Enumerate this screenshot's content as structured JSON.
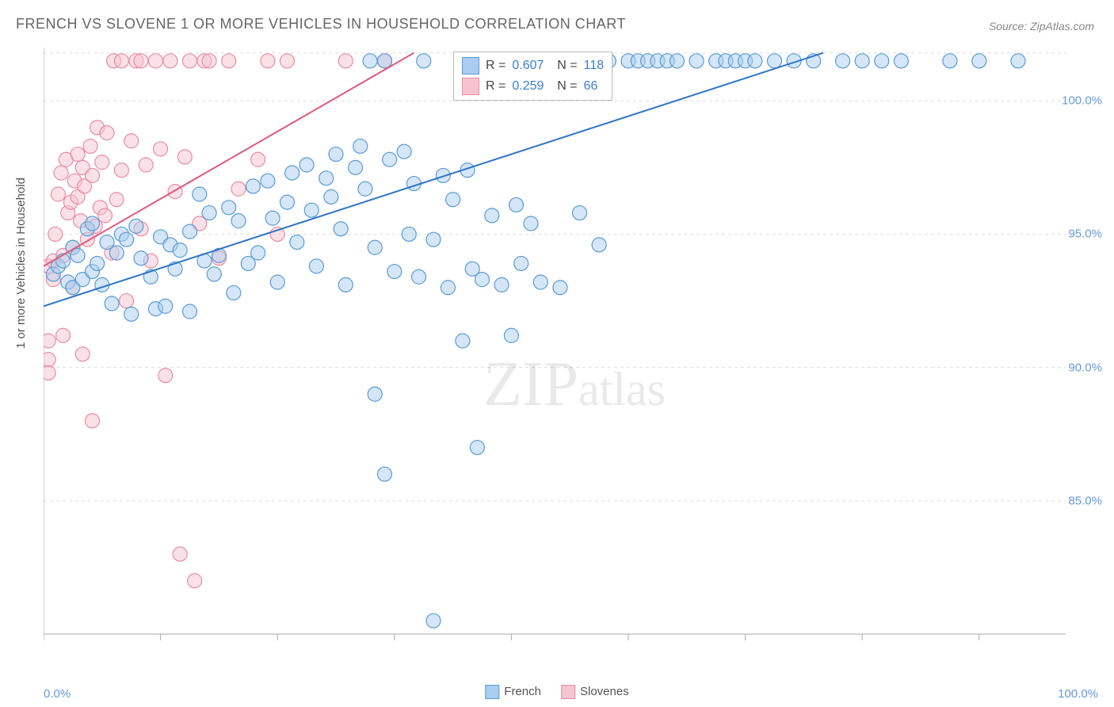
{
  "title": "FRENCH VS SLOVENE 1 OR MORE VEHICLES IN HOUSEHOLD CORRELATION CHART",
  "source": "Source: ZipAtlas.com",
  "ylabel": "1 or more Vehicles in Household",
  "watermark": "ZIPatlas",
  "chart": {
    "type": "scatter",
    "background_color": "#ffffff",
    "grid_color": "#dddddd",
    "axis_color": "#aaaaaa",
    "tick_color": "#aaaaaa",
    "tick_label_color": "#6699dd",
    "xlim": [
      0,
      100
    ],
    "ylim": [
      80,
      102
    ],
    "xticks": [
      0,
      12,
      24,
      36,
      48,
      60,
      72,
      84,
      96
    ],
    "xtick_labels_shown": {
      "start": "0.0%",
      "end": "100.0%"
    },
    "yticks": [
      85,
      90,
      95,
      100
    ],
    "ytick_labels": [
      "85.0%",
      "90.0%",
      "95.0%",
      "100.0%"
    ],
    "marker_radius": 9,
    "marker_opacity": 0.5,
    "trend_line_width": 2,
    "series": [
      {
        "name": "French",
        "color_fill": "#a9cdf0",
        "color_stroke": "#5b9bd5",
        "line_color": "#2e75c6",
        "R": "0.607",
        "N": "118",
        "trend": {
          "x1": 0,
          "y1": 92.3,
          "x2": 80,
          "y2": 101.8
        },
        "points": [
          [
            1,
            93.5
          ],
          [
            1.5,
            93.8
          ],
          [
            2,
            94.0
          ],
          [
            2.5,
            93.2
          ],
          [
            3,
            94.5
          ],
          [
            3,
            93.0
          ],
          [
            3.5,
            94.2
          ],
          [
            4,
            93.3
          ],
          [
            4.5,
            95.2
          ],
          [
            5,
            95.4
          ],
          [
            5,
            93.6
          ],
          [
            5.5,
            93.9
          ],
          [
            6,
            93.1
          ],
          [
            6.5,
            94.7
          ],
          [
            7,
            92.4
          ],
          [
            7.5,
            94.3
          ],
          [
            8,
            95.0
          ],
          [
            8.5,
            94.8
          ],
          [
            9,
            92.0
          ],
          [
            9.5,
            95.3
          ],
          [
            10,
            94.1
          ],
          [
            11,
            93.4
          ],
          [
            11.5,
            92.2
          ],
          [
            12,
            94.9
          ],
          [
            12.5,
            92.3
          ],
          [
            13,
            94.6
          ],
          [
            13.5,
            93.7
          ],
          [
            14,
            94.4
          ],
          [
            15,
            92.1
          ],
          [
            15,
            95.1
          ],
          [
            16,
            96.5
          ],
          [
            16.5,
            94.0
          ],
          [
            17,
            95.8
          ],
          [
            17.5,
            93.5
          ],
          [
            18,
            94.2
          ],
          [
            19,
            96.0
          ],
          [
            19.5,
            92.8
          ],
          [
            20,
            95.5
          ],
          [
            21,
            93.9
          ],
          [
            21.5,
            96.8
          ],
          [
            22,
            94.3
          ],
          [
            23,
            97.0
          ],
          [
            23.5,
            95.6
          ],
          [
            24,
            93.2
          ],
          [
            25,
            96.2
          ],
          [
            25.5,
            97.3
          ],
          [
            26,
            94.7
          ],
          [
            27,
            97.6
          ],
          [
            27.5,
            95.9
          ],
          [
            28,
            93.8
          ],
          [
            29,
            97.1
          ],
          [
            29.5,
            96.4
          ],
          [
            30,
            98.0
          ],
          [
            30.5,
            95.2
          ],
          [
            31,
            93.1
          ],
          [
            32,
            97.5
          ],
          [
            32.5,
            98.3
          ],
          [
            33,
            96.7
          ],
          [
            33.5,
            101.5
          ],
          [
            34,
            94.5
          ],
          [
            34,
            89.0
          ],
          [
            35,
            101.5
          ],
          [
            35,
            86.0
          ],
          [
            35.5,
            97.8
          ],
          [
            36,
            93.6
          ],
          [
            37,
            98.1
          ],
          [
            37.5,
            95.0
          ],
          [
            38,
            96.9
          ],
          [
            38.5,
            93.4
          ],
          [
            39,
            101.5
          ],
          [
            40,
            80.5
          ],
          [
            40,
            94.8
          ],
          [
            41,
            97.2
          ],
          [
            41.5,
            93.0
          ],
          [
            42,
            96.3
          ],
          [
            43,
            91.0
          ],
          [
            43.5,
            97.4
          ],
          [
            44,
            93.7
          ],
          [
            44.5,
            87.0
          ],
          [
            45,
            93.3
          ],
          [
            45,
            101.5
          ],
          [
            46,
            95.7
          ],
          [
            47,
            93.1
          ],
          [
            48,
            91.2
          ],
          [
            48.5,
            96.1
          ],
          [
            49,
            93.9
          ],
          [
            50,
            101.5
          ],
          [
            50,
            95.4
          ],
          [
            51,
            93.2
          ],
          [
            52,
            101.5
          ],
          [
            53,
            93.0
          ],
          [
            54,
            101.5
          ],
          [
            55,
            95.8
          ],
          [
            55.5,
            101.5
          ],
          [
            57,
            94.6
          ],
          [
            58,
            101.5
          ],
          [
            60,
            101.5
          ],
          [
            61,
            101.5
          ],
          [
            62,
            101.5
          ],
          [
            63,
            101.5
          ],
          [
            64,
            101.5
          ],
          [
            65,
            101.5
          ],
          [
            67,
            101.5
          ],
          [
            69,
            101.5
          ],
          [
            70,
            101.5
          ],
          [
            71,
            101.5
          ],
          [
            72,
            101.5
          ],
          [
            73,
            101.5
          ],
          [
            75,
            101.5
          ],
          [
            77,
            101.5
          ],
          [
            79,
            101.5
          ],
          [
            82,
            101.5
          ],
          [
            84,
            101.5
          ],
          [
            86,
            101.5
          ],
          [
            88,
            101.5
          ],
          [
            93,
            101.5
          ],
          [
            96,
            101.5
          ],
          [
            100,
            101.5
          ]
        ]
      },
      {
        "name": "Slovenes",
        "color_fill": "#f6c4d0",
        "color_stroke": "#e88ca5",
        "line_color": "#e05a7d",
        "R": "0.259",
        "N": "66",
        "trend": {
          "x1": 0,
          "y1": 93.8,
          "x2": 38,
          "y2": 101.8
        },
        "points": [
          [
            0.5,
            93.8
          ],
          [
            0.5,
            91.0
          ],
          [
            0.5,
            89.8
          ],
          [
            0.5,
            90.3
          ],
          [
            1,
            94.0
          ],
          [
            1,
            93.3
          ],
          [
            1.2,
            95.0
          ],
          [
            1.5,
            96.5
          ],
          [
            1.8,
            97.3
          ],
          [
            2,
            94.2
          ],
          [
            2,
            91.2
          ],
          [
            2.3,
            97.8
          ],
          [
            2.5,
            95.8
          ],
          [
            2.8,
            96.2
          ],
          [
            3,
            94.5
          ],
          [
            3,
            93.0
          ],
          [
            3.2,
            97.0
          ],
          [
            3.5,
            96.4
          ],
          [
            3.5,
            98.0
          ],
          [
            3.8,
            95.5
          ],
          [
            4,
            97.5
          ],
          [
            4,
            90.5
          ],
          [
            4.2,
            96.8
          ],
          [
            4.5,
            94.8
          ],
          [
            4.8,
            98.3
          ],
          [
            5,
            97.2
          ],
          [
            5,
            88.0
          ],
          [
            5.3,
            95.3
          ],
          [
            5.5,
            99.0
          ],
          [
            5.8,
            96.0
          ],
          [
            6,
            97.7
          ],
          [
            6.3,
            95.7
          ],
          [
            6.5,
            98.8
          ],
          [
            7,
            94.3
          ],
          [
            7.2,
            101.5
          ],
          [
            7.5,
            96.3
          ],
          [
            8,
            97.4
          ],
          [
            8,
            101.5
          ],
          [
            8.5,
            92.5
          ],
          [
            9,
            98.5
          ],
          [
            9.5,
            101.5
          ],
          [
            10,
            95.2
          ],
          [
            10,
            101.5
          ],
          [
            10.5,
            97.6
          ],
          [
            11,
            94.0
          ],
          [
            11.5,
            101.5
          ],
          [
            12,
            98.2
          ],
          [
            12.5,
            89.7
          ],
          [
            13,
            101.5
          ],
          [
            13.5,
            96.6
          ],
          [
            14,
            83.0
          ],
          [
            14.5,
            97.9
          ],
          [
            15,
            101.5
          ],
          [
            15.5,
            82.0
          ],
          [
            16,
            95.4
          ],
          [
            16.5,
            101.5
          ],
          [
            17,
            101.5
          ],
          [
            18,
            94.1
          ],
          [
            19,
            101.5
          ],
          [
            20,
            96.7
          ],
          [
            22,
            97.8
          ],
          [
            23,
            101.5
          ],
          [
            24,
            95.0
          ],
          [
            25,
            101.5
          ],
          [
            31,
            101.5
          ],
          [
            35,
            101.5
          ]
        ]
      }
    ]
  },
  "bottom_legend": [
    {
      "label": "French",
      "fill": "#a9cdf0",
      "stroke": "#5b9bd5"
    },
    {
      "label": "Slovenes",
      "fill": "#f6c4d0",
      "stroke": "#e88ca5"
    }
  ]
}
